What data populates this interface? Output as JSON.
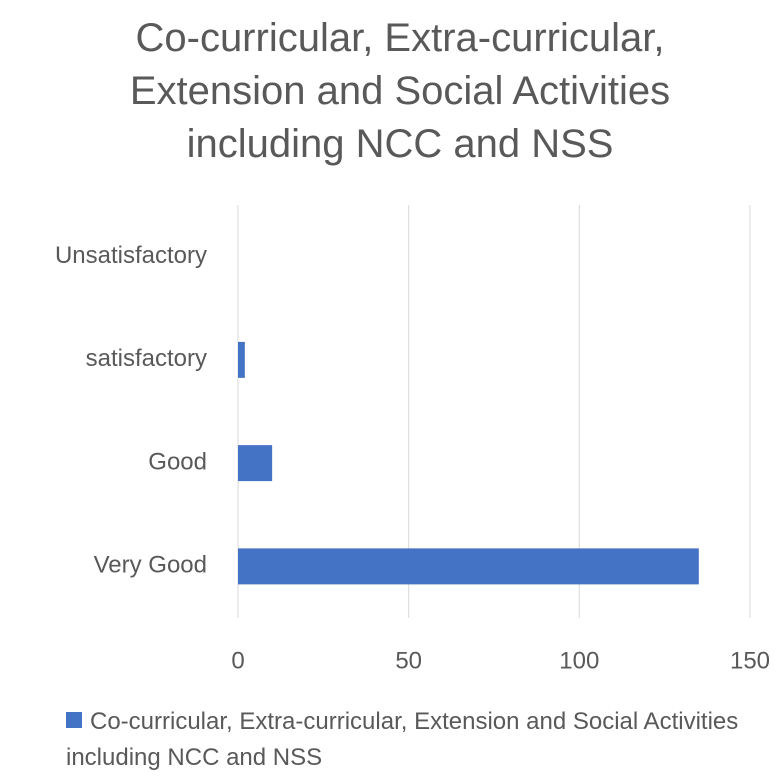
{
  "chart_data": {
    "type": "bar",
    "orientation": "horizontal",
    "title": "Co-curricular, Extra-curricular, Extension and Social Activities including NCC and NSS",
    "categories": [
      "Unsatisfactory",
      "satisfactory",
      "Good",
      "Very Good"
    ],
    "series": [
      {
        "name": "Co-curricular, Extra-curricular, Extension and Social Activities including NCC and NSS",
        "color": "#4472c4",
        "values": [
          0,
          2,
          10,
          135
        ]
      }
    ],
    "xlim": [
      0,
      150
    ],
    "xticks": [
      0,
      50,
      100,
      150
    ],
    "grid": true,
    "legend": "bottom"
  }
}
